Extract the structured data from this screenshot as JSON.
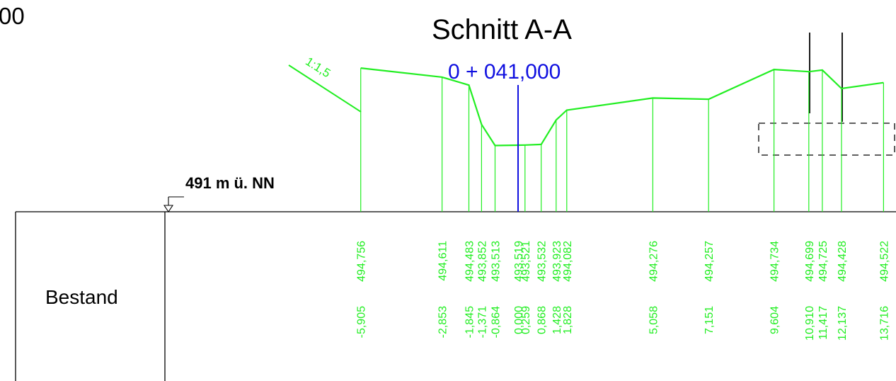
{
  "corner_text": "00",
  "title": "Schnitt A-A",
  "station": "0 + 041,000",
  "slope_label": "1:1,5",
  "datum_label": "491 m ü. NN",
  "row_label": "Bestand",
  "colors": {
    "terrain": "#22ee22",
    "axis": "#1010e0",
    "frame": "#000000"
  },
  "chart_data": {
    "type": "line",
    "title": "Schnitt A-A",
    "datum_m": 491,
    "points": [
      {
        "offset": "-5,905",
        "height": "494,756",
        "x": -5.905,
        "z": 494.756
      },
      {
        "offset": "-2,853",
        "height": "494,611",
        "x": -2.853,
        "z": 494.611
      },
      {
        "offset": "-1,845",
        "height": "494,483",
        "x": -1.845,
        "z": 494.483
      },
      {
        "offset": "-1,371",
        "height": "493,852",
        "x": -1.371,
        "z": 493.852
      },
      {
        "offset": "-0,864",
        "height": "493,513",
        "x": -0.864,
        "z": 493.513
      },
      {
        "offset": "0,000",
        "height": "493,519",
        "x": 0.0,
        "z": 493.519
      },
      {
        "offset": "0,259",
        "height": "493,521",
        "x": 0.259,
        "z": 493.521
      },
      {
        "offset": "0,868",
        "height": "493,532",
        "x": 0.868,
        "z": 493.532
      },
      {
        "offset": "1,428",
        "height": "493,923",
        "x": 1.428,
        "z": 493.923
      },
      {
        "offset": "1,828",
        "height": "494,082",
        "x": 1.828,
        "z": 494.082
      },
      {
        "offset": "5,058",
        "height": "494,276",
        "x": 5.058,
        "z": 494.276
      },
      {
        "offset": "7,151",
        "height": "494,257",
        "x": 7.151,
        "z": 494.257
      },
      {
        "offset": "9,604",
        "height": "494,734",
        "x": 9.604,
        "z": 494.734
      },
      {
        "offset": "10,910",
        "height": "494,699",
        "x": 10.91,
        "z": 494.699
      },
      {
        "offset": "11,417",
        "height": "494,725",
        "x": 11.417,
        "z": 494.725
      },
      {
        "offset": "12,137",
        "height": "494,428",
        "x": 12.137,
        "z": 494.428
      },
      {
        "offset": "13,716",
        "height": "494,522",
        "x": 13.716,
        "z": 494.522
      }
    ]
  }
}
